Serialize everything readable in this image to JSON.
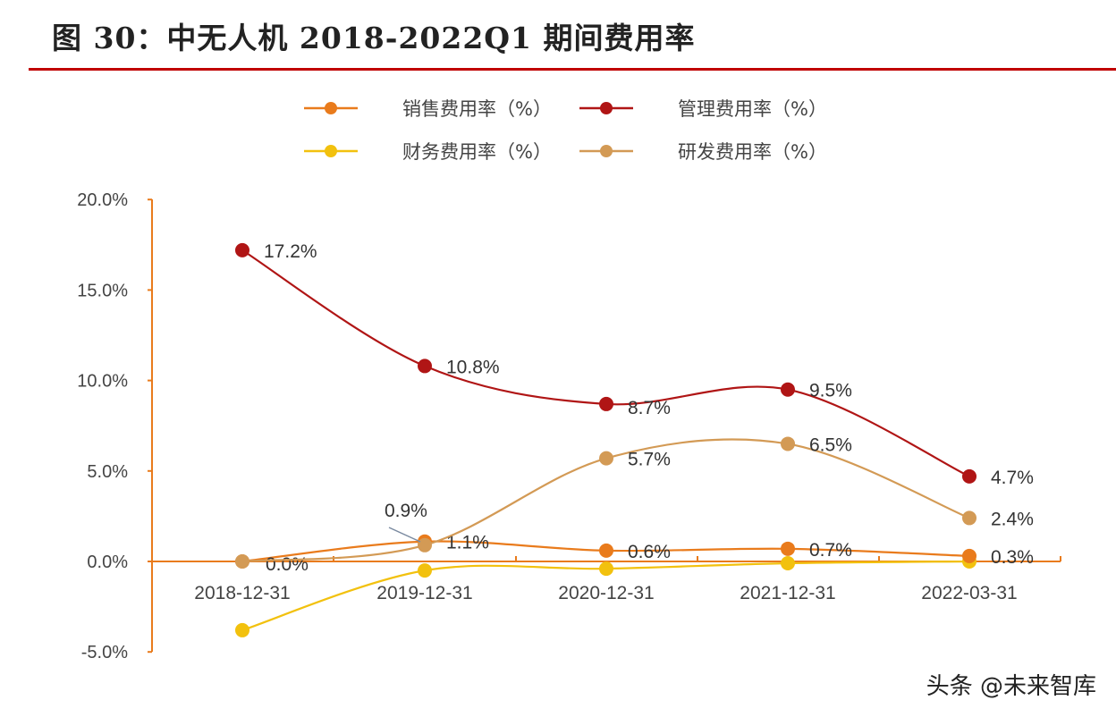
{
  "title": "图 30：中无人机 2018-2022Q1 期间费用率",
  "watermark": "头条 @未来智库",
  "chart_data": {
    "type": "line",
    "categories": [
      "2018-12-31",
      "2019-12-31",
      "2020-12-31",
      "2021-12-31",
      "2022-03-31"
    ],
    "ylim": [
      -5,
      20
    ],
    "yticks": [
      "-5.0%",
      "0.0%",
      "5.0%",
      "10.0%",
      "15.0%",
      "20.0%"
    ],
    "grid": false,
    "legend_position": "top",
    "series": [
      {
        "name": "销售费用率（%）",
        "color": "#e97b1c",
        "values": [
          0.0,
          1.1,
          0.6,
          0.7,
          0.3
        ],
        "labels": [
          "0.0%",
          "1.1%",
          "0.6%",
          "0.7%",
          "0.3%"
        ]
      },
      {
        "name": "管理费用率（%）",
        "color": "#b01515",
        "values": [
          17.2,
          10.8,
          8.7,
          9.5,
          4.7
        ],
        "labels": [
          "17.2%",
          "10.8%",
          "8.7%",
          "9.5%",
          "4.7%"
        ]
      },
      {
        "name": "财务费用率（%）",
        "color": "#f2c10e",
        "values": [
          -3.8,
          -0.5,
          -0.4,
          -0.1,
          0.0
        ],
        "labels": [
          "",
          "",
          "",
          "",
          ""
        ]
      },
      {
        "name": "研发费用率（%）",
        "color": "#d39a55",
        "values": [
          0.0,
          0.9,
          5.7,
          6.5,
          2.4
        ],
        "labels": [
          "",
          "0.9%",
          "5.7%",
          "6.5%",
          "2.4%"
        ]
      }
    ]
  }
}
